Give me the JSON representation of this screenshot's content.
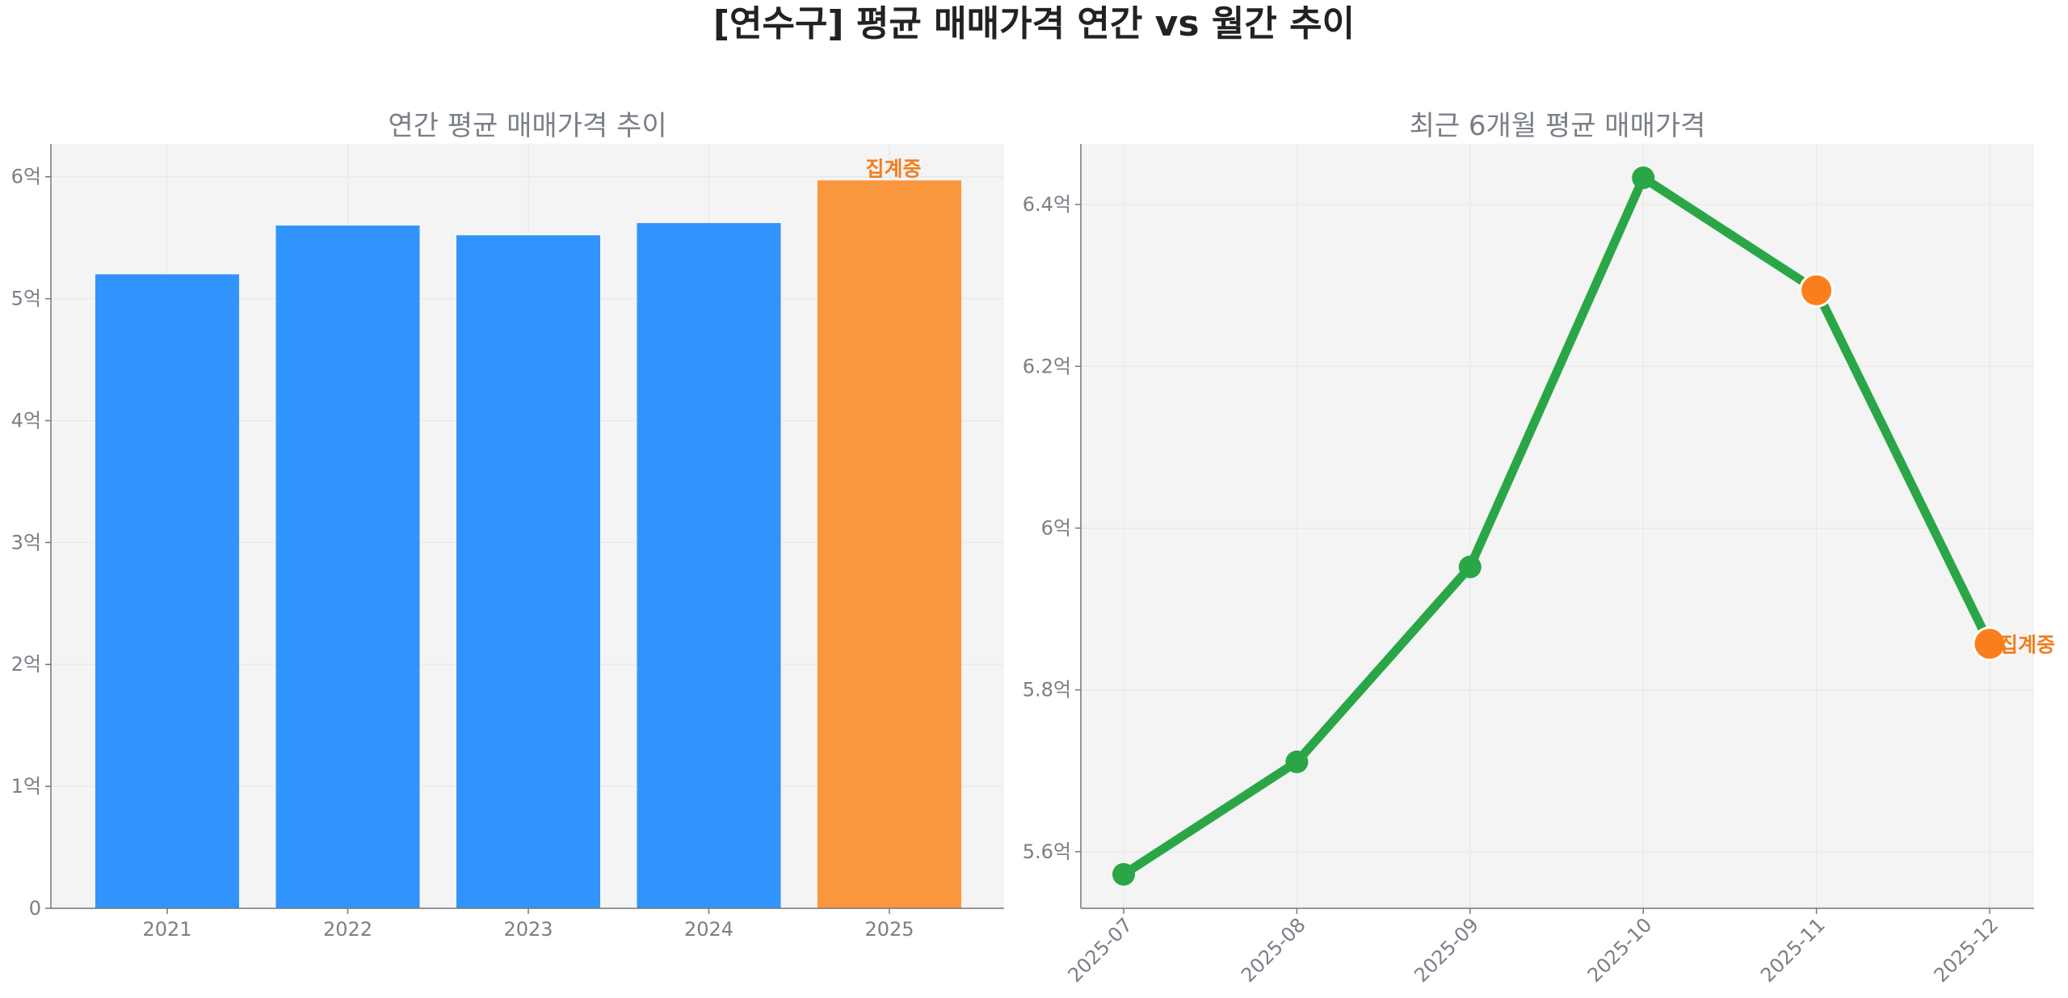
{
  "title": "[연수구] 평균 매매가격 연간 vs 월간 추이",
  "colors": {
    "bar": "#3193fc",
    "bar_partial": "#fa963e",
    "line": "#2aa646",
    "marker_partial": "#fa7f1c",
    "annotation": "#f07f1c",
    "plot_bg": "#f4f4f4"
  },
  "chart_data": [
    {
      "type": "bar",
      "title": "연간 평균 매매가격 추이",
      "categories": [
        "2021",
        "2022",
        "2023",
        "2024",
        "2025"
      ],
      "values": [
        5.2,
        5.6,
        5.52,
        5.62,
        5.97
      ],
      "partial": [
        false,
        false,
        false,
        false,
        true
      ],
      "annotation": "집계중",
      "ylim": [
        0,
        6.27
      ],
      "yticks": [
        0,
        1,
        2,
        3,
        4,
        5,
        6
      ],
      "ytick_labels": [
        "0",
        "1억",
        "2억",
        "3억",
        "4억",
        "5억",
        "6억"
      ],
      "grid": true
    },
    {
      "type": "line",
      "title": "최근 6개월 평균 매매가격",
      "categories": [
        "2025-07",
        "2025-08",
        "2025-09",
        "2025-10",
        "2025-11",
        "2025-12"
      ],
      "values": [
        5.572,
        5.711,
        5.952,
        6.433,
        6.294,
        5.857
      ],
      "partial": [
        false,
        false,
        false,
        false,
        true,
        true
      ],
      "annotation": "집계중",
      "ylim": [
        5.53,
        6.475
      ],
      "yticks": [
        5.6,
        5.8,
        6.0,
        6.2,
        6.4
      ],
      "ytick_labels": [
        "5.6억",
        "5.8억",
        "6억",
        "6.2억",
        "6.4억"
      ],
      "grid": true
    }
  ]
}
